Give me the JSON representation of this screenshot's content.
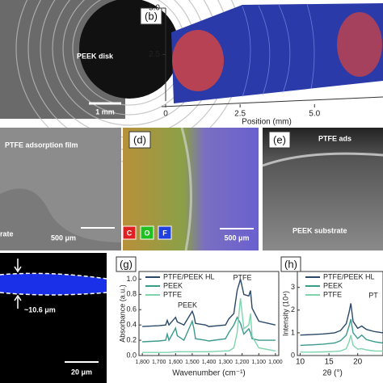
{
  "images": {
    "a": {
      "label": "PEEK disk",
      "scale": "1 mm"
    },
    "b": {
      "tag": "(b)",
      "xlabel": "Position (mm)",
      "xlim": [
        0,
        7.3
      ],
      "xticks": [
        0,
        2.5,
        {
          "value": 5,
          "label": "5.0"
        }
      ],
      "ylim": [
        0,
        5
      ],
      "yticks": [
        2.5,
        {
          "value": 5,
          "label": "5.0"
        }
      ]
    },
    "c": {
      "label": "PTFE adsorption film",
      "substrate": "rate",
      "scale": "500 μm"
    },
    "d": {
      "tag": "(d)",
      "elements": [
        "C",
        "O",
        "F"
      ],
      "scale": "500 μm"
    },
    "e": {
      "tag": "(e)",
      "film": "PTFE ads",
      "substrate": "PEEK substrate"
    },
    "f": {
      "thickness": "~10.6 μm",
      "scale": "20 μm"
    }
  },
  "chart_data": [
    {
      "type": "line",
      "tag": "(g)",
      "xlabel": "Wavenumber (cm⁻¹)",
      "ylabel": "Absorbance (a.u.)",
      "annotations": [
        "PTFE",
        "PEEK"
      ],
      "x": [
        1800,
        1700,
        1660,
        1650,
        1640,
        1600,
        1590,
        1550,
        1500,
        1490,
        1480,
        1420,
        1400,
        1300,
        1280,
        1250,
        1230,
        1210,
        1190,
        1160,
        1150,
        1140,
        1100,
        1000
      ],
      "xlim": [
        1820,
        980
      ],
      "xticks": [
        {
          "value": 1800,
          "label": "1,800"
        },
        {
          "value": 1700,
          "label": "1,700"
        },
        {
          "value": 1600,
          "label": "1,600"
        },
        {
          "value": 1500,
          "label": "1,500"
        },
        {
          "value": 1400,
          "label": "1,400"
        },
        {
          "value": 1300,
          "label": "1,300"
        },
        {
          "value": 1200,
          "label": "1,200"
        },
        {
          "value": 1100,
          "label": "1,100"
        },
        {
          "value": 1000,
          "label": "1,000"
        }
      ],
      "ylim": [
        0,
        1.1
      ],
      "yticks": [
        {
          "value": 0,
          "label": "0.0"
        },
        0.2,
        0.4,
        0.6,
        0.8,
        {
          "value": 1,
          "label": "1.0"
        }
      ],
      "series": [
        {
          "name": "PTFE/PEEK HL",
          "color": "#2b4868",
          "values": [
            0.38,
            0.39,
            0.4,
            0.46,
            0.4,
            0.5,
            0.44,
            0.4,
            0.58,
            0.52,
            0.42,
            0.4,
            0.38,
            0.4,
            0.48,
            0.55,
            0.85,
            1.0,
            0.8,
            0.78,
            0.85,
            0.62,
            0.45,
            0.4
          ]
        },
        {
          "name": "PEEK",
          "color": "#3a9a8c",
          "values": [
            0.18,
            0.19,
            0.2,
            0.28,
            0.2,
            0.36,
            0.26,
            0.2,
            0.45,
            0.35,
            0.22,
            0.2,
            0.19,
            0.22,
            0.3,
            0.4,
            0.5,
            0.42,
            0.28,
            0.35,
            0.3,
            0.22,
            0.2,
            0.2
          ]
        },
        {
          "name": "PTFE",
          "color": "#7fd4ae",
          "values": [
            0.04,
            0.04,
            0.04,
            0.04,
            0.04,
            0.05,
            0.05,
            0.05,
            0.05,
            0.05,
            0.05,
            0.05,
            0.05,
            0.06,
            0.06,
            0.1,
            0.3,
            0.75,
            0.35,
            0.4,
            0.55,
            0.25,
            0.1,
            0.06
          ]
        }
      ]
    },
    {
      "type": "line",
      "tag": "(h)",
      "xlabel": "2θ (°)",
      "ylabel": "Intensity (10⁴)",
      "annotations": [
        "PT"
      ],
      "x": [
        10,
        12,
        14,
        16,
        17,
        18,
        18.5,
        18.8,
        19.2,
        20,
        20.7,
        21.5,
        23,
        24.4
      ],
      "xlim": [
        9.5,
        24.4
      ],
      "xticks": [
        10,
        15,
        20
      ],
      "ylim": [
        0,
        3.7
      ],
      "yticks": [
        0,
        1,
        2,
        3
      ],
      "series": [
        {
          "name": "PTFE/PEEK HL",
          "color": "#2b4868",
          "values": [
            0.9,
            0.92,
            0.95,
            1.0,
            1.1,
            1.4,
            1.9,
            2.3,
            1.5,
            1.2,
            1.3,
            1.15,
            1.05,
            1.0
          ]
        },
        {
          "name": "PEEK",
          "color": "#3a9a8c",
          "values": [
            0.45,
            0.47,
            0.5,
            0.55,
            0.65,
            0.9,
            1.3,
            1.6,
            1.0,
            0.75,
            0.9,
            0.7,
            0.6,
            0.55
          ]
        },
        {
          "name": "PTFE",
          "color": "#7fd4ae",
          "values": [
            0.15,
            0.15,
            0.16,
            0.18,
            0.2,
            0.3,
            0.6,
            0.9,
            0.45,
            0.28,
            0.3,
            0.25,
            0.2,
            0.2
          ]
        }
      ]
    }
  ]
}
